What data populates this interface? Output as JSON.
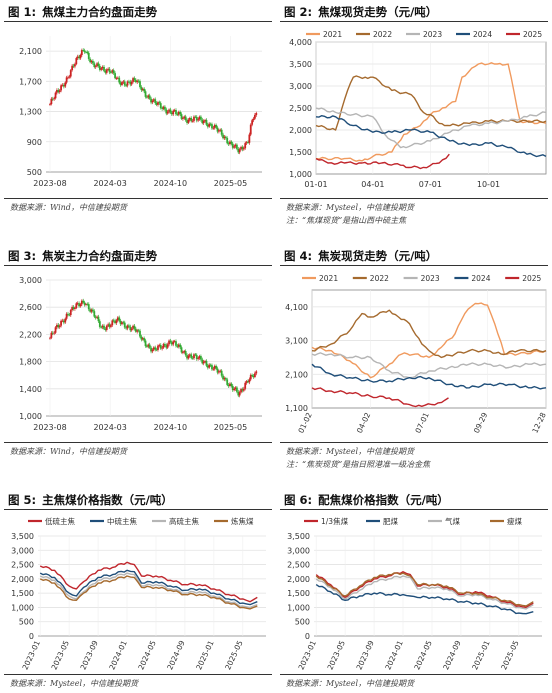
{
  "panels": [
    {
      "id": "p1",
      "num": "图 1:",
      "title": "焦煤主力合约盘面走势",
      "source": "数据来源：Wind，中信建投期货",
      "note": ""
    },
    {
      "id": "p2",
      "num": "图 2:",
      "title": "焦煤现货走势（元/吨）",
      "source": "数据来源：Mysteel，中信建投期货",
      "note": "注：“焦煤现货”是指山西中硫主焦"
    },
    {
      "id": "p3",
      "num": "图 3:",
      "title": "焦炭主力合约盘面走势",
      "source": "数据来源：Wind，中信建投期货",
      "note": ""
    },
    {
      "id": "p4",
      "num": "图 4:",
      "title": "焦炭现货走势（元/吨）",
      "source": "数据来源：Mysteel，中信建投期货",
      "note": "注：“焦炭现货”是指日照港准一级冶金焦"
    },
    {
      "id": "p5",
      "num": "图 5:",
      "title": "主焦煤价格指数（元/吨）",
      "source": "数据来源：Mysteel，中信建投期货",
      "note": ""
    },
    {
      "id": "p6",
      "num": "图 6:",
      "title": "配焦煤价格指数（元/吨）",
      "source": "数据来源：Mysteel，中信建投期货",
      "note": ""
    }
  ],
  "chart_data": [
    {
      "id": "p1",
      "type": "candlestick",
      "title": "焦煤主力合约盘面走势",
      "x_ticks": [
        "2023-08",
        "2024-03",
        "2024-10",
        "2025-05"
      ],
      "y_ticks": [
        500,
        900,
        1300,
        1700,
        2100
      ],
      "ylim": [
        500,
        2300
      ],
      "up_color": "#cc2222",
      "down_color": "#33aa33",
      "anchors": [
        [
          "2023-08",
          1400
        ],
        [
          "2023-10",
          1750
        ],
        [
          "2023-12",
          2150
        ],
        [
          "2024-01",
          1900
        ],
        [
          "2024-03",
          1850
        ],
        [
          "2024-04",
          1680
        ],
        [
          "2024-06",
          1700
        ],
        [
          "2024-08",
          1420
        ],
        [
          "2024-10",
          1300
        ],
        [
          "2024-12",
          1200
        ],
        [
          "2025-02",
          1180
        ],
        [
          "2025-04",
          1000
        ],
        [
          "2025-06",
          760
        ],
        [
          "2025-07",
          920
        ],
        [
          "2025-07b",
          1230
        ]
      ]
    },
    {
      "id": "p2",
      "type": "line",
      "title": "焦煤现货走势（元/吨）",
      "x_ticks": [
        "01-01",
        "04-01",
        "07-01",
        "10-01"
      ],
      "y_ticks": [
        1000,
        1500,
        2000,
        2500,
        3000,
        3500,
        4000
      ],
      "ylim": [
        1000,
        4000
      ],
      "legend_position": "top",
      "series": [
        {
          "name": "2021",
          "color": "#f09a5e",
          "x": [
            "01-01",
            "02-15",
            "03-15",
            "04-01",
            "05-01",
            "05-20",
            "06-15",
            "07-01",
            "07-20",
            "08-10",
            "08-20",
            "09-15",
            "10-01",
            "10-15",
            "11-01",
            "11-20",
            "12-31"
          ],
          "values": [
            1350,
            1350,
            1300,
            1400,
            1500,
            1900,
            2100,
            2350,
            2500,
            2650,
            3200,
            3500,
            3500,
            3500,
            3500,
            2200,
            2150
          ]
        },
        {
          "name": "2022",
          "color": "#a56a2e",
          "x": [
            "01-01",
            "02-01",
            "02-20",
            "03-01",
            "03-20",
            "04-01",
            "05-01",
            "06-01",
            "06-20",
            "07-01",
            "07-15",
            "08-01",
            "09-01",
            "10-01",
            "11-01",
            "12-31"
          ],
          "values": [
            2100,
            2000,
            2900,
            3200,
            3200,
            3200,
            2900,
            2800,
            2400,
            2350,
            2150,
            2100,
            2150,
            2200,
            2200,
            2200
          ]
        },
        {
          "name": "2023",
          "color": "#b5b5b5",
          "x": [
            "01-01",
            "02-01",
            "03-01",
            "04-01",
            "04-20",
            "05-15",
            "06-01",
            "07-01",
            "08-01",
            "09-01",
            "10-01",
            "11-01",
            "12-01",
            "12-31"
          ],
          "values": [
            2500,
            2400,
            2350,
            2300,
            1900,
            1600,
            1650,
            1750,
            1950,
            2100,
            2150,
            2200,
            2300,
            2400
          ]
        },
        {
          "name": "2024",
          "color": "#1f4e79",
          "x": [
            "01-01",
            "02-01",
            "03-01",
            "04-01",
            "05-01",
            "06-01",
            "07-01",
            "08-01",
            "09-01",
            "10-01",
            "11-01",
            "12-01",
            "12-31"
          ],
          "values": [
            2300,
            2300,
            2100,
            1950,
            1950,
            2000,
            1950,
            1750,
            1650,
            1700,
            1600,
            1450,
            1400
          ]
        },
        {
          "name": "2025",
          "color": "#c0262c",
          "x": [
            "01-01",
            "01-20",
            "02-15",
            "03-15",
            "04-15",
            "05-15",
            "06-01",
            "06-20",
            "07-15",
            "07-31"
          ],
          "values": [
            1350,
            1250,
            1250,
            1250,
            1250,
            1200,
            1150,
            1150,
            1250,
            1450
          ]
        }
      ]
    },
    {
      "id": "p3",
      "type": "candlestick",
      "title": "焦炭主力合约盘面走势",
      "x_ticks": [
        "2023-08",
        "2024-03",
        "2024-10",
        "2025-05"
      ],
      "y_ticks": [
        1000,
        1400,
        1800,
        2200,
        2600,
        3000
      ],
      "ylim": [
        1000,
        3000
      ],
      "up_color": "#cc2222",
      "down_color": "#33aa33",
      "anchors": [
        [
          "2023-08",
          2150
        ],
        [
          "2023-10",
          2500
        ],
        [
          "2023-12",
          2700
        ],
        [
          "2024-02",
          2300
        ],
        [
          "2024-04",
          2400
        ],
        [
          "2024-06",
          2250
        ],
        [
          "2024-08",
          1950
        ],
        [
          "2024-10",
          2100
        ],
        [
          "2024-12",
          1900
        ],
        [
          "2025-02",
          1800
        ],
        [
          "2025-04",
          1600
        ],
        [
          "2025-06",
          1300
        ],
        [
          "2025-07",
          1550
        ],
        [
          "2025-07b",
          1600
        ]
      ]
    },
    {
      "id": "p4",
      "type": "line",
      "title": "焦炭现货走势（元/吨）",
      "x_ticks": [
        "01-02",
        "04-02",
        "07-01",
        "09-29",
        "12-28"
      ],
      "y_ticks": [
        1100,
        2100,
        3100,
        4100
      ],
      "ylim": [
        1100,
        4600
      ],
      "legend_position": "top",
      "series": [
        {
          "name": "2021",
          "color": "#f09a5e",
          "x": [
            "01-02",
            "02-01",
            "03-01",
            "04-02",
            "05-01",
            "05-20",
            "06-10",
            "07-01",
            "07-20",
            "08-10",
            "08-25",
            "09-10",
            "09-29",
            "10-10",
            "10-25",
            "11-15",
            "12-28"
          ],
          "values": [
            2900,
            2800,
            2500,
            2000,
            2400,
            2700,
            2700,
            2600,
            2900,
            3300,
            3900,
            4200,
            4150,
            3600,
            2700,
            2700,
            2800
          ]
        },
        {
          "name": "2022",
          "color": "#a56a2e",
          "x": [
            "01-02",
            "02-01",
            "03-01",
            "03-20",
            "04-02",
            "05-01",
            "05-15",
            "06-01",
            "06-20",
            "07-01",
            "07-20",
            "08-10",
            "09-01",
            "09-29",
            "10-20",
            "11-15",
            "12-28"
          ],
          "values": [
            2800,
            3000,
            3400,
            3900,
            3800,
            4000,
            3800,
            3600,
            3000,
            2800,
            2600,
            2700,
            2800,
            2800,
            2700,
            2800,
            2800
          ]
        },
        {
          "name": "2023",
          "color": "#b5b5b5",
          "x": [
            "01-02",
            "02-01",
            "03-01",
            "04-02",
            "05-01",
            "06-01",
            "07-01",
            "08-01",
            "09-01",
            "09-29",
            "11-01",
            "12-01",
            "12-28"
          ],
          "values": [
            2700,
            2700,
            2600,
            2600,
            2200,
            2000,
            2200,
            2300,
            2400,
            2400,
            2300,
            2400,
            2400
          ]
        },
        {
          "name": "2024",
          "color": "#1f4e79",
          "x": [
            "01-02",
            "02-01",
            "03-01",
            "04-02",
            "05-01",
            "06-01",
            "07-01",
            "08-01",
            "09-01",
            "09-29",
            "11-01",
            "12-01",
            "12-28"
          ],
          "values": [
            2400,
            2100,
            2000,
            1900,
            1900,
            2000,
            2000,
            1800,
            1700,
            1800,
            1800,
            1700,
            1700
          ]
        },
        {
          "name": "2025",
          "color": "#c0262c",
          "x": [
            "01-02",
            "02-01",
            "03-01",
            "04-02",
            "05-01",
            "06-01",
            "06-20",
            "07-15",
            "07-31"
          ],
          "values": [
            1700,
            1600,
            1550,
            1450,
            1400,
            1200,
            1150,
            1250,
            1400
          ]
        }
      ]
    },
    {
      "id": "p5",
      "type": "line",
      "title": "主焦煤价格指数（元/吨）",
      "x_ticks": [
        "2023-01",
        "2023-05",
        "2023-09",
        "2024-01",
        "2024-05",
        "2024-09",
        "2025-01",
        "2025-05"
      ],
      "y_ticks": [
        0,
        500,
        1000,
        1500,
        2000,
        2500,
        3000,
        3500
      ],
      "ylim": [
        0,
        3500
      ],
      "legend_position": "top",
      "series": [
        {
          "name": "低硫主焦",
          "color": "#c0262c",
          "x": [
            "2023-01",
            "2023-03",
            "2023-05",
            "2023-06",
            "2023-07",
            "2023-09",
            "2023-11",
            "2024-01",
            "2024-02",
            "2024-03",
            "2024-05",
            "2024-07",
            "2024-09",
            "2024-11",
            "2025-01",
            "2025-03",
            "2025-05",
            "2025-06",
            "2025-07"
          ],
          "values": [
            2450,
            2300,
            1750,
            1650,
            1900,
            2300,
            2400,
            2580,
            2500,
            2100,
            2100,
            1950,
            1800,
            1800,
            1650,
            1450,
            1300,
            1200,
            1350
          ]
        },
        {
          "name": "中硫主焦",
          "color": "#1f4e79",
          "x": [
            "2023-01",
            "2023-03",
            "2023-05",
            "2023-06",
            "2023-07",
            "2023-09",
            "2023-11",
            "2024-01",
            "2024-02",
            "2024-03",
            "2024-05",
            "2024-07",
            "2024-09",
            "2024-11",
            "2025-01",
            "2025-03",
            "2025-05",
            "2025-06",
            "2025-07"
          ],
          "values": [
            2200,
            2050,
            1500,
            1400,
            1700,
            2050,
            2150,
            2300,
            2250,
            1850,
            1900,
            1750,
            1600,
            1650,
            1500,
            1300,
            1150,
            1100,
            1200
          ]
        },
        {
          "name": "高硫主焦",
          "color": "#b5b5b5",
          "x": [
            "2023-01",
            "2023-03",
            "2023-05",
            "2023-06",
            "2023-07",
            "2023-09",
            "2023-11",
            "2024-01",
            "2024-02",
            "2024-03",
            "2024-05",
            "2024-07",
            "2024-09",
            "2024-11",
            "2025-01",
            "2025-03",
            "2025-05",
            "2025-06",
            "2025-07"
          ],
          "values": [
            2100,
            1950,
            1400,
            1300,
            1550,
            1950,
            2050,
            2200,
            2150,
            1750,
            1800,
            1650,
            1500,
            1550,
            1400,
            1200,
            1050,
            1000,
            1100
          ]
        },
        {
          "name": "炼焦煤",
          "color": "#a56a2e",
          "x": [
            "2023-01",
            "2023-03",
            "2023-05",
            "2023-06",
            "2023-07",
            "2023-09",
            "2023-11",
            "2024-01",
            "2024-02",
            "2024-03",
            "2024-05",
            "2024-07",
            "2024-09",
            "2024-11",
            "2025-01",
            "2025-03",
            "2025-05",
            "2025-06",
            "2025-07"
          ],
          "values": [
            2000,
            1850,
            1300,
            1250,
            1500,
            1850,
            1950,
            2100,
            2050,
            1700,
            1700,
            1600,
            1450,
            1450,
            1350,
            1150,
            1000,
            950,
            1050
          ]
        }
      ]
    },
    {
      "id": "p6",
      "type": "line",
      "title": "配焦煤价格指数（元/吨）",
      "x_ticks": [
        "2023-01",
        "2023-05",
        "2023-09",
        "2024-01",
        "2024-05",
        "2024-09",
        "2025-01",
        "2025-05"
      ],
      "y_ticks": [
        0,
        500,
        1000,
        1500,
        2000,
        2500,
        3000,
        3500
      ],
      "ylim": [
        0,
        3500
      ],
      "legend_position": "top",
      "series": [
        {
          "name": "1/3焦煤",
          "color": "#c0262c",
          "x": [
            "2023-01",
            "2023-03",
            "2023-05",
            "2023-07",
            "2023-09",
            "2023-11",
            "2024-01",
            "2024-02",
            "2024-03",
            "2024-05",
            "2024-07",
            "2024-09",
            "2024-11",
            "2025-01",
            "2025-03",
            "2025-05",
            "2025-06",
            "2025-07"
          ],
          "values": [
            2150,
            1800,
            1350,
            1700,
            2000,
            2100,
            2250,
            2150,
            1750,
            1800,
            1700,
            1450,
            1550,
            1400,
            1200,
            1050,
            1000,
            1150
          ]
        },
        {
          "name": "肥煤",
          "color": "#1f4e79",
          "x": [
            "2023-01",
            "2023-03",
            "2023-05",
            "2023-07",
            "2023-09",
            "2023-11",
            "2024-01",
            "2024-02",
            "2024-03",
            "2024-05",
            "2024-07",
            "2024-09",
            "2024-11",
            "2025-01",
            "2025-03",
            "2025-05",
            "2025-06",
            "2025-07"
          ],
          "values": [
            1800,
            1550,
            1250,
            1400,
            1500,
            1450,
            1450,
            1400,
            1350,
            1350,
            1300,
            1200,
            1150,
            1050,
            950,
            800,
            780,
            850
          ]
        },
        {
          "name": "气煤",
          "color": "#b5b5b5",
          "x": [
            "2023-01",
            "2023-03",
            "2023-05",
            "2023-07",
            "2023-09",
            "2023-11",
            "2024-01",
            "2024-02",
            "2024-03",
            "2024-05",
            "2024-07",
            "2024-09",
            "2024-11",
            "2025-01",
            "2025-03",
            "2025-05",
            "2025-06",
            "2025-07"
          ],
          "values": [
            2000,
            1700,
            1300,
            1600,
            1900,
            2000,
            2100,
            2050,
            1650,
            1700,
            1650,
            1400,
            1450,
            1300,
            1150,
            1000,
            950,
            1100
          ]
        },
        {
          "name": "瘦煤",
          "color": "#a56a2e",
          "x": [
            "2023-01",
            "2023-03",
            "2023-05",
            "2023-07",
            "2023-09",
            "2023-11",
            "2024-01",
            "2024-02",
            "2024-03",
            "2024-05",
            "2024-07",
            "2024-09",
            "2024-11",
            "2025-01",
            "2025-03",
            "2025-05",
            "2025-06",
            "2025-07"
          ],
          "values": [
            2100,
            1750,
            1400,
            1750,
            2050,
            2150,
            2200,
            2100,
            1800,
            1800,
            1750,
            1500,
            1500,
            1350,
            1250,
            1100,
            1050,
            1200
          ]
        }
      ]
    }
  ]
}
